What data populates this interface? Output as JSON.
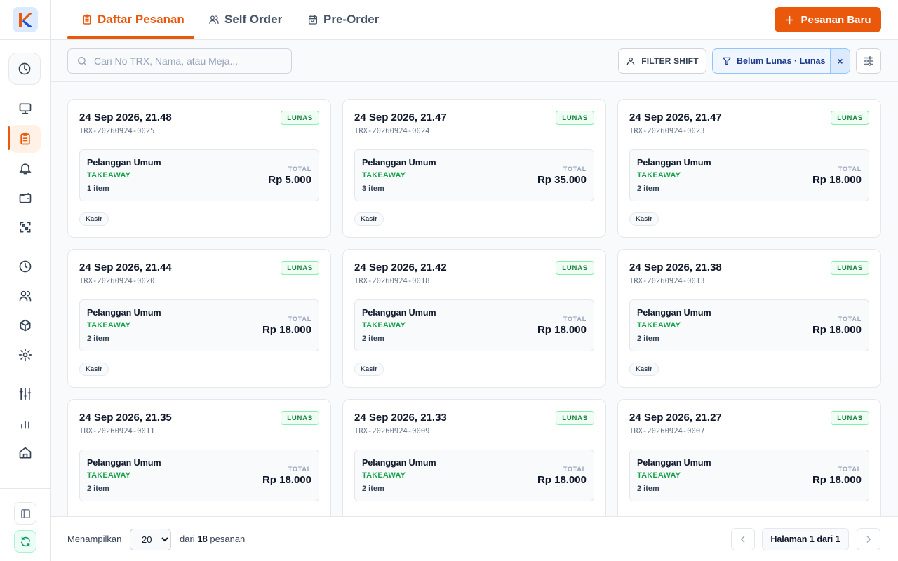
{
  "colors": {
    "accent": "#ea580c",
    "paid": "#15803d",
    "takeaway": "#16a34a",
    "filter": "#1e3a8a"
  },
  "sidebar": {
    "logo": "app-logo",
    "items": [
      {
        "icon": "clock-icon"
      },
      {
        "icon": "monitor-icon"
      },
      {
        "icon": "clipboard-icon",
        "active": true
      },
      {
        "icon": "bell-icon"
      },
      {
        "icon": "wallet-icon"
      },
      {
        "icon": "qr-scan-icon"
      },
      {
        "icon": "history-icon"
      },
      {
        "icon": "users-icon"
      },
      {
        "icon": "package-icon"
      },
      {
        "icon": "gear-icon"
      },
      {
        "icon": "sliders-icon"
      },
      {
        "icon": "bar-chart-icon"
      },
      {
        "icon": "store-icon"
      },
      {
        "icon": "sidebar-toggle-icon"
      },
      {
        "icon": "sync-icon"
      }
    ]
  },
  "header": {
    "tabs": [
      {
        "label": "Daftar Pesanan",
        "active": true
      },
      {
        "label": "Self Order"
      },
      {
        "label": "Pre-Order"
      }
    ],
    "new_order_label": "Pesanan Baru"
  },
  "toolbar": {
    "search_placeholder": "Cari No TRX, Nama, atau Meja...",
    "filter_shift_label": "FILTER SHIFT",
    "status_filter_label": "Belum Lunas · Lunas",
    "clear_filter_label": "×"
  },
  "orders": [
    {
      "date": "24 Sep 2026, 21.48",
      "trx": "TRX-20260924-0025",
      "status": "LUNAS",
      "customer": "Pelanggan Umum",
      "type": "TAKEAWAY",
      "items": "1 item",
      "total_label": "TOTAL",
      "total": "Rp 5.000",
      "source": "Kasir"
    },
    {
      "date": "24 Sep 2026, 21.47",
      "trx": "TRX-20260924-0024",
      "status": "LUNAS",
      "customer": "Pelanggan Umum",
      "type": "TAKEAWAY",
      "items": "3 item",
      "total_label": "TOTAL",
      "total": "Rp 35.000",
      "source": "Kasir"
    },
    {
      "date": "24 Sep 2026, 21.47",
      "trx": "TRX-20260924-0023",
      "status": "LUNAS",
      "customer": "Pelanggan Umum",
      "type": "TAKEAWAY",
      "items": "2 item",
      "total_label": "TOTAL",
      "total": "Rp 18.000",
      "source": "Kasir"
    },
    {
      "date": "24 Sep 2026, 21.44",
      "trx": "TRX-20260924-0020",
      "status": "LUNAS",
      "customer": "Pelanggan Umum",
      "type": "TAKEAWAY",
      "items": "2 item",
      "total_label": "TOTAL",
      "total": "Rp 18.000",
      "source": "Kasir"
    },
    {
      "date": "24 Sep 2026, 21.42",
      "trx": "TRX-20260924-0018",
      "status": "LUNAS",
      "customer": "Pelanggan Umum",
      "type": "TAKEAWAY",
      "items": "2 item",
      "total_label": "TOTAL",
      "total": "Rp 18.000",
      "source": "Kasir"
    },
    {
      "date": "24 Sep 2026, 21.38",
      "trx": "TRX-20260924-0013",
      "status": "LUNAS",
      "customer": "Pelanggan Umum",
      "type": "TAKEAWAY",
      "items": "2 item",
      "total_label": "TOTAL",
      "total": "Rp 18.000",
      "source": "Kasir"
    },
    {
      "date": "24 Sep 2026, 21.35",
      "trx": "TRX-20260924-0011",
      "status": "LUNAS",
      "customer": "Pelanggan Umum",
      "type": "TAKEAWAY",
      "items": "2 item",
      "total_label": "TOTAL",
      "total": "Rp 18.000",
      "source": ""
    },
    {
      "date": "24 Sep 2026, 21.33",
      "trx": "TRX-20260924-0009",
      "status": "LUNAS",
      "customer": "Pelanggan Umum",
      "type": "TAKEAWAY",
      "items": "2 item",
      "total_label": "TOTAL",
      "total": "Rp 18.000",
      "source": ""
    },
    {
      "date": "24 Sep 2026, 21.27",
      "trx": "TRX-20260924-0007",
      "status": "LUNAS",
      "customer": "Pelanggan Umum",
      "type": "TAKEAWAY",
      "items": "2 item",
      "total_label": "TOTAL",
      "total": "Rp 18.000",
      "source": ""
    }
  ],
  "footer": {
    "showing_label": "Menampilkan",
    "page_size": "20",
    "of_label": "dari",
    "total_count": "18",
    "unit_label": "pesanan",
    "page_info": "Halaman 1 dari 1"
  }
}
